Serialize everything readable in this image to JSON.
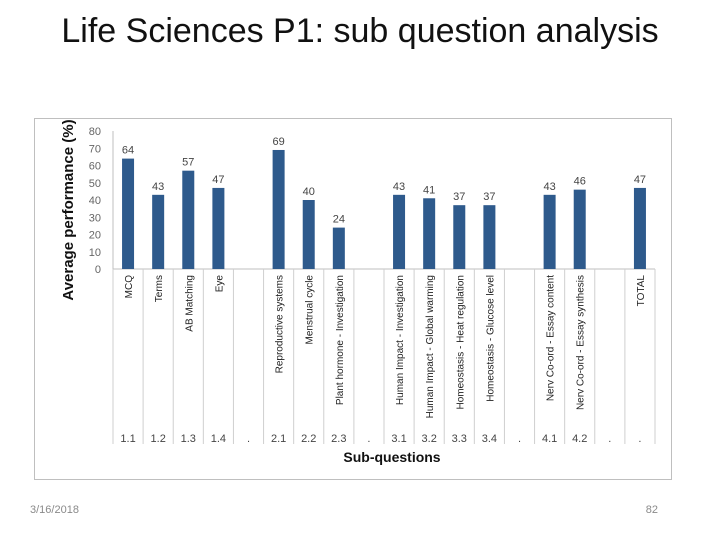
{
  "slide": {
    "title": "Life Sciences  P1: sub question analysis",
    "date": "3/16/2018",
    "page_number": "82"
  },
  "chart_data": {
    "type": "bar",
    "ylabel": "Average performance (%)",
    "xlabel": "Sub-questions",
    "ylim": [
      0,
      80
    ],
    "yticks": [
      0,
      10,
      20,
      30,
      40,
      50,
      60,
      70,
      80
    ],
    "grid": false,
    "bar_color": "#2e5a8c",
    "categories": [
      "MCQ",
      "Terms",
      "AB Matching",
      "Eye",
      "",
      "Reproductive systems",
      "Menstrual cycle",
      "Plant hormone - Investigation",
      "",
      "Human Impact - Investigation",
      "Human Impact - Global warming",
      "Homeostasis - Heat regulation",
      "Homeostasis - Glucose level",
      "",
      "Nerv Co-ord - Essay content",
      "Nerv Co-ord - Essay synthesis",
      "",
      "TOTAL"
    ],
    "codes": [
      "1.1",
      "1.2",
      "1.3",
      "1.4",
      ".",
      "2.1",
      "2.2",
      "2.3",
      ".",
      "3.1",
      "3.2",
      "3.3",
      "3.4",
      ".",
      "4.1",
      "4.2",
      ".",
      "."
    ],
    "values": [
      64,
      43,
      57,
      47,
      null,
      69,
      40,
      24,
      null,
      43,
      41,
      37,
      37,
      null,
      43,
      46,
      null,
      47
    ]
  }
}
